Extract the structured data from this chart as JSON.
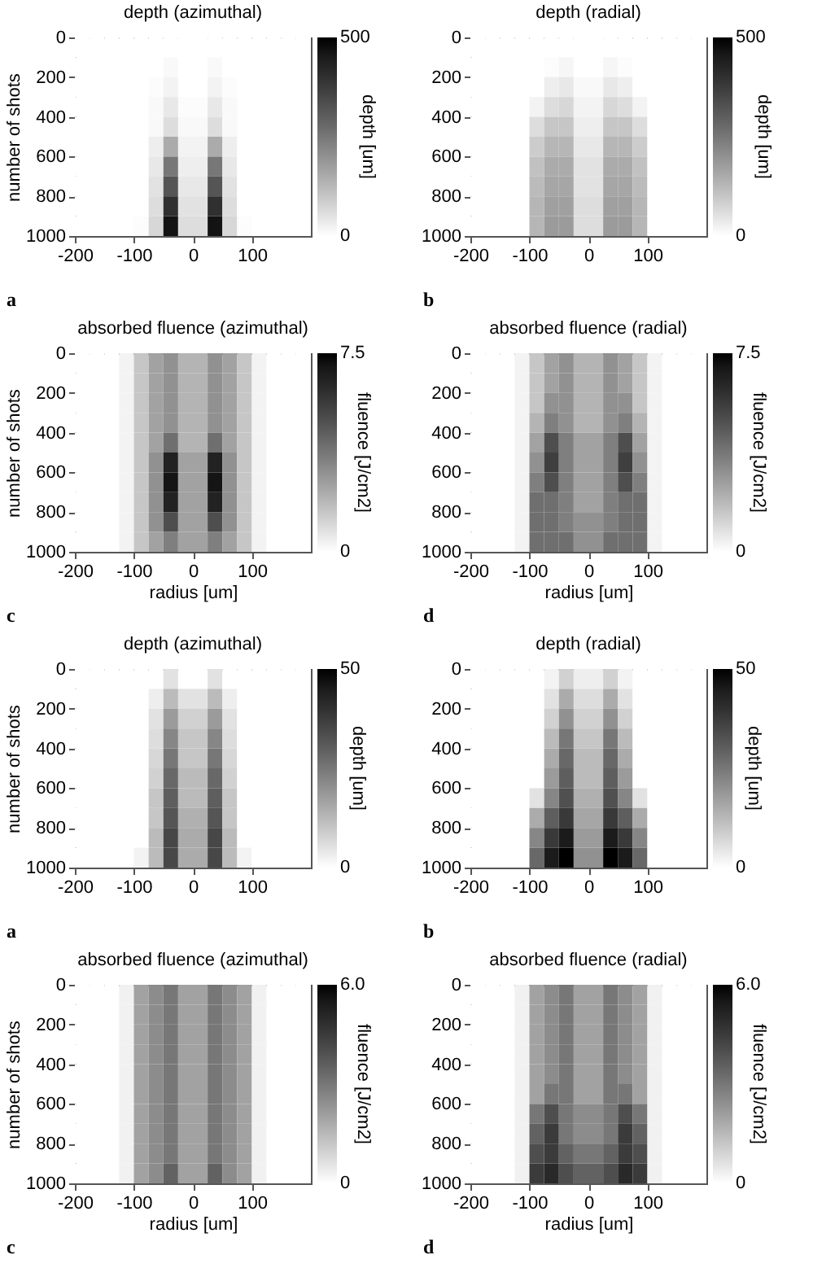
{
  "chart_data": [
    {
      "type": "heatmap",
      "title": "depth (azimuthal)",
      "ylabel": "number of shots",
      "clabel": "depth [um]",
      "annotations": [
        "a"
      ],
      "xlim": [
        -200,
        200
      ],
      "xticks": [
        -200,
        -100,
        0,
        100
      ],
      "ylim": [
        1000,
        0
      ],
      "yticks": [
        0,
        200,
        400,
        600,
        800,
        1000
      ],
      "clim": [
        0,
        500
      ],
      "cticks": [
        0,
        500
      ],
      "cells": [
        [
          0,
          0,
          0,
          0,
          0,
          0,
          0,
          0,
          0,
          0,
          0,
          0,
          0,
          0,
          0,
          0
        ],
        [
          0,
          0,
          0,
          0,
          0,
          0,
          10,
          0,
          0,
          10,
          0,
          0,
          0,
          0,
          0,
          0
        ],
        [
          0,
          0,
          0,
          0,
          0,
          5,
          20,
          0,
          0,
          20,
          5,
          0,
          0,
          0,
          0,
          0
        ],
        [
          0,
          0,
          0,
          0,
          0,
          10,
          40,
          5,
          5,
          40,
          10,
          0,
          0,
          0,
          0,
          0
        ],
        [
          0,
          0,
          0,
          0,
          0,
          10,
          60,
          10,
          10,
          60,
          10,
          0,
          0,
          0,
          0,
          0
        ],
        [
          0,
          0,
          0,
          0,
          0,
          30,
          150,
          20,
          20,
          150,
          30,
          0,
          0,
          0,
          0,
          0
        ],
        [
          0,
          0,
          0,
          0,
          0,
          40,
          250,
          30,
          30,
          250,
          40,
          0,
          0,
          0,
          0,
          0
        ],
        [
          0,
          0,
          0,
          0,
          0,
          50,
          320,
          40,
          40,
          320,
          50,
          0,
          0,
          0,
          0,
          0
        ],
        [
          0,
          0,
          0,
          0,
          0,
          60,
          400,
          50,
          50,
          400,
          60,
          0,
          0,
          0,
          0,
          0
        ],
        [
          0,
          0,
          0,
          0,
          5,
          70,
          470,
          60,
          60,
          470,
          70,
          5,
          0,
          0,
          0,
          0
        ]
      ]
    },
    {
      "type": "heatmap",
      "title": "depth (radial)",
      "clabel": "depth [um]",
      "annotations": [
        "b"
      ],
      "xlim": [
        -200,
        200
      ],
      "xticks": [
        -200,
        -100,
        0,
        100
      ],
      "ylim": [
        1000,
        0
      ],
      "yticks": [
        0,
        200,
        400,
        600,
        800,
        1000
      ],
      "clim": [
        0,
        500
      ],
      "cticks": [
        0,
        500
      ],
      "cells": [
        [
          0,
          0,
          0,
          0,
          0,
          0,
          0,
          0,
          0,
          0,
          0,
          0,
          0,
          0,
          0,
          0
        ],
        [
          0,
          0,
          0,
          0,
          0,
          5,
          15,
          0,
          0,
          15,
          5,
          0,
          0,
          0,
          0,
          0
        ],
        [
          0,
          0,
          0,
          0,
          0,
          30,
          40,
          10,
          10,
          40,
          30,
          0,
          0,
          0,
          0,
          0
        ],
        [
          0,
          0,
          0,
          0,
          20,
          60,
          70,
          20,
          20,
          70,
          60,
          20,
          0,
          0,
          0,
          0
        ],
        [
          0,
          0,
          0,
          0,
          60,
          100,
          100,
          30,
          30,
          100,
          100,
          60,
          0,
          0,
          0,
          0
        ],
        [
          0,
          0,
          0,
          0,
          90,
          130,
          130,
          40,
          40,
          130,
          130,
          90,
          0,
          0,
          0,
          0
        ],
        [
          0,
          0,
          0,
          0,
          110,
          150,
          150,
          50,
          50,
          150,
          150,
          110,
          0,
          0,
          0,
          0
        ],
        [
          0,
          0,
          0,
          0,
          120,
          160,
          160,
          50,
          50,
          160,
          160,
          120,
          0,
          0,
          0,
          0
        ],
        [
          0,
          0,
          0,
          0,
          130,
          170,
          170,
          60,
          60,
          170,
          170,
          130,
          0,
          0,
          0,
          0
        ],
        [
          0,
          0,
          0,
          0,
          130,
          180,
          180,
          60,
          60,
          180,
          180,
          130,
          0,
          0,
          0,
          0
        ]
      ]
    },
    {
      "type": "heatmap",
      "title": "absorbed fluence (azimuthal)",
      "xlabel": "radius [um]",
      "ylabel": "number of shots",
      "clabel": "fluence [J/cm2]",
      "annotations": [
        "c"
      ],
      "xlim": [
        -200,
        200
      ],
      "xticks": [
        -200,
        -100,
        0,
        100
      ],
      "ylim": [
        1000,
        0
      ],
      "yticks": [
        0,
        200,
        400,
        600,
        800,
        1000
      ],
      "clim": [
        0,
        7.5
      ],
      "cticks": [
        0,
        7.5
      ],
      "cells": [
        [
          0,
          0,
          0,
          0.3,
          1.5,
          2.5,
          3,
          2,
          2,
          3,
          2.5,
          1.5,
          0.3,
          0,
          0,
          0
        ],
        [
          0,
          0,
          0,
          0.3,
          1.5,
          2.5,
          3,
          2,
          2,
          3,
          2.5,
          1.5,
          0.3,
          0,
          0,
          0
        ],
        [
          0,
          0,
          0,
          0.3,
          1.5,
          2.5,
          3,
          2,
          2,
          3,
          2.5,
          1.5,
          0.3,
          0,
          0,
          0
        ],
        [
          0,
          0,
          0,
          0.3,
          1.5,
          2.5,
          3,
          2,
          2,
          3,
          2.5,
          1.5,
          0.3,
          0,
          0,
          0
        ],
        [
          0,
          0,
          0,
          0.3,
          1.5,
          2.5,
          4,
          2,
          2,
          4,
          2.5,
          1.5,
          0.3,
          0,
          0,
          0
        ],
        [
          0,
          0,
          0,
          0.3,
          1.5,
          3,
          6.5,
          2.5,
          2.5,
          6.5,
          3,
          1.5,
          0.3,
          0,
          0,
          0
        ],
        [
          0,
          0,
          0,
          0.3,
          1.5,
          3,
          7,
          2.5,
          2.5,
          7,
          3,
          1.5,
          0.3,
          0,
          0,
          0
        ],
        [
          0,
          0,
          0,
          0.3,
          1.5,
          3,
          6.5,
          2.5,
          2.5,
          6.5,
          3,
          1.5,
          0.3,
          0,
          0,
          0
        ],
        [
          0,
          0,
          0,
          0.3,
          1.5,
          3,
          5,
          2.5,
          2.5,
          5,
          3,
          1.5,
          0.3,
          0,
          0,
          0
        ],
        [
          0,
          0,
          0,
          0.3,
          1.5,
          2.5,
          3.5,
          2.5,
          2.5,
          3.5,
          2.5,
          1.5,
          0.3,
          0,
          0,
          0
        ]
      ]
    },
    {
      "type": "heatmap",
      "title": "absorbed fluence (radial)",
      "xlabel": "radius [um]",
      "clabel": "fluence [J/cm2]",
      "annotations": [
        "d"
      ],
      "xlim": [
        -200,
        200
      ],
      "xticks": [
        -200,
        -100,
        0,
        100
      ],
      "ylim": [
        1000,
        0
      ],
      "yticks": [
        0,
        200,
        400,
        600,
        800,
        1000
      ],
      "clim": [
        0,
        7.5
      ],
      "cticks": [
        0,
        7.5
      ],
      "cells": [
        [
          0,
          0,
          0,
          0.3,
          1.5,
          2.5,
          3,
          2,
          2,
          3,
          2.5,
          1.5,
          0.3,
          0,
          0,
          0
        ],
        [
          0,
          0,
          0,
          0.3,
          1.5,
          2.5,
          3,
          2,
          2,
          3,
          2.5,
          1.5,
          0.3,
          0,
          0,
          0
        ],
        [
          0,
          0,
          0,
          0.3,
          1.5,
          3,
          3,
          2,
          2,
          3,
          3,
          1.5,
          0.3,
          0,
          0,
          0
        ],
        [
          0,
          0,
          0,
          0.3,
          2,
          3.5,
          3,
          2,
          2,
          3,
          3.5,
          2,
          0.3,
          0,
          0,
          0
        ],
        [
          0,
          0,
          0,
          0.3,
          2.5,
          5,
          3.5,
          2.5,
          2.5,
          3.5,
          5,
          2.5,
          0.3,
          0,
          0,
          0
        ],
        [
          0,
          0,
          0,
          0.3,
          3,
          5.5,
          3.5,
          2.5,
          2.5,
          3.5,
          5.5,
          3,
          0.3,
          0,
          0,
          0
        ],
        [
          0,
          0,
          0,
          0.3,
          3.5,
          5,
          3.5,
          2.5,
          2.5,
          3.5,
          5,
          3.5,
          0.3,
          0,
          0,
          0
        ],
        [
          0,
          0,
          0,
          0.3,
          4,
          4,
          3.5,
          2.5,
          2.5,
          3.5,
          4,
          4,
          0.3,
          0,
          0,
          0
        ],
        [
          0,
          0,
          0,
          0.3,
          4,
          4,
          3.5,
          3,
          3,
          3.5,
          4,
          4,
          0.3,
          0,
          0,
          0
        ],
        [
          0,
          0,
          0,
          0.3,
          4,
          4,
          4,
          3,
          3,
          4,
          4,
          4,
          0.3,
          0,
          0,
          0
        ]
      ]
    },
    {
      "type": "heatmap",
      "title": "depth (azimuthal)",
      "ylabel": "number of shots",
      "clabel": "depth [um]",
      "annotations": [
        "a"
      ],
      "xlim": [
        -200,
        200
      ],
      "xticks": [
        -200,
        -100,
        0,
        100
      ],
      "ylim": [
        1000,
        0
      ],
      "yticks": [
        0,
        200,
        400,
        600,
        800,
        1000
      ],
      "clim": [
        0,
        50
      ],
      "cticks": [
        0,
        50
      ],
      "cells": [
        [
          0,
          0,
          0,
          0,
          0,
          0,
          5,
          0,
          0,
          5,
          0,
          0,
          0,
          0,
          0,
          0
        ],
        [
          0,
          0,
          0,
          0,
          0,
          3,
          12,
          5,
          5,
          12,
          3,
          0,
          0,
          0,
          0,
          0
        ],
        [
          0,
          0,
          0,
          0,
          0,
          5,
          18,
          8,
          8,
          18,
          5,
          0,
          0,
          0,
          0,
          0
        ],
        [
          0,
          0,
          0,
          0,
          0,
          6,
          22,
          10,
          10,
          22,
          6,
          0,
          0,
          0,
          0,
          0
        ],
        [
          0,
          0,
          0,
          0,
          0,
          7,
          25,
          10,
          10,
          25,
          7,
          0,
          0,
          0,
          0,
          0
        ],
        [
          0,
          0,
          0,
          0,
          0,
          8,
          28,
          12,
          12,
          28,
          8,
          0,
          0,
          0,
          0,
          0
        ],
        [
          0,
          0,
          0,
          0,
          0,
          10,
          30,
          12,
          12,
          30,
          10,
          0,
          0,
          0,
          0,
          0
        ],
        [
          0,
          0,
          0,
          0,
          0,
          10,
          32,
          14,
          14,
          32,
          10,
          0,
          0,
          0,
          0,
          0
        ],
        [
          0,
          0,
          0,
          0,
          0,
          12,
          35,
          15,
          15,
          35,
          12,
          0,
          0,
          0,
          0,
          0
        ],
        [
          0,
          0,
          0,
          0,
          2,
          12,
          35,
          15,
          15,
          35,
          12,
          2,
          0,
          0,
          0,
          0
        ]
      ]
    },
    {
      "type": "heatmap",
      "title": "depth (radial)",
      "clabel": "depth [um]",
      "annotations": [
        "b"
      ],
      "xlim": [
        -200,
        200
      ],
      "xticks": [
        -200,
        -100,
        0,
        100
      ],
      "ylim": [
        1000,
        0
      ],
      "yticks": [
        0,
        200,
        400,
        600,
        800,
        1000
      ],
      "clim": [
        0,
        50
      ],
      "cticks": [
        0,
        50
      ],
      "cells": [
        [
          0,
          0,
          0,
          0,
          0,
          2,
          8,
          3,
          3,
          8,
          2,
          0,
          0,
          0,
          0,
          0
        ],
        [
          0,
          0,
          0,
          0,
          0,
          5,
          15,
          6,
          6,
          15,
          5,
          0,
          0,
          0,
          0,
          0
        ],
        [
          0,
          0,
          0,
          0,
          0,
          8,
          20,
          8,
          8,
          20,
          8,
          0,
          0,
          0,
          0,
          0
        ],
        [
          0,
          0,
          0,
          0,
          0,
          12,
          25,
          10,
          10,
          25,
          12,
          0,
          0,
          0,
          0,
          0
        ],
        [
          0,
          0,
          0,
          0,
          0,
          15,
          28,
          12,
          12,
          28,
          15,
          0,
          0,
          0,
          0,
          0
        ],
        [
          0,
          0,
          0,
          0,
          0,
          18,
          30,
          12,
          12,
          30,
          18,
          0,
          0,
          0,
          0,
          0
        ],
        [
          0,
          0,
          0,
          0,
          5,
          22,
          33,
          14,
          14,
          33,
          22,
          5,
          0,
          0,
          0,
          0
        ],
        [
          0,
          0,
          0,
          0,
          15,
          30,
          38,
          16,
          16,
          38,
          30,
          15,
          0,
          0,
          0,
          0
        ],
        [
          0,
          0,
          0,
          0,
          22,
          38,
          45,
          18,
          18,
          45,
          38,
          22,
          0,
          0,
          0,
          0
        ],
        [
          0,
          0,
          0,
          0,
          28,
          45,
          50,
          20,
          20,
          50,
          45,
          28,
          0,
          0,
          0,
          0
        ]
      ]
    },
    {
      "type": "heatmap",
      "title": "absorbed fluence (azimuthal)",
      "xlabel": "radius [um]",
      "ylabel": "number of shots",
      "clabel": "fluence [J/cm2]",
      "annotations": [
        "c"
      ],
      "xlim": [
        -200,
        200
      ],
      "xticks": [
        -200,
        -100,
        0,
        100
      ],
      "ylim": [
        1000,
        0
      ],
      "yticks": [
        0,
        200,
        400,
        600,
        800,
        1000
      ],
      "clim": [
        0,
        6
      ],
      "cticks": [
        0,
        {
          "value": 6,
          "label": "6.0"
        }
      ],
      "cells": [
        [
          0,
          0,
          0,
          0.3,
          2,
          2.5,
          3,
          2,
          2,
          3,
          2.5,
          2,
          0.3,
          0,
          0,
          0
        ],
        [
          0,
          0,
          0,
          0.3,
          2,
          2.5,
          3,
          2,
          2,
          3,
          2.5,
          2,
          0.3,
          0,
          0,
          0
        ],
        [
          0,
          0,
          0,
          0.3,
          2,
          2.5,
          3,
          2,
          2,
          3,
          2.5,
          2,
          0.3,
          0,
          0,
          0
        ],
        [
          0,
          0,
          0,
          0.3,
          2,
          2.5,
          3,
          2,
          2,
          3,
          2.5,
          2,
          0.3,
          0,
          0,
          0
        ],
        [
          0,
          0,
          0,
          0.3,
          2,
          2.5,
          3,
          2,
          2,
          3,
          2.5,
          2,
          0.3,
          0,
          0,
          0
        ],
        [
          0,
          0,
          0,
          0.3,
          2,
          2.5,
          3,
          2,
          2,
          3,
          2.5,
          2,
          0.3,
          0,
          0,
          0
        ],
        [
          0,
          0,
          0,
          0.3,
          2,
          2.5,
          3,
          2,
          2,
          3,
          2.5,
          2,
          0.3,
          0,
          0,
          0
        ],
        [
          0,
          0,
          0,
          0.3,
          2,
          2.5,
          3,
          2,
          2,
          3,
          2.5,
          2,
          0.3,
          0,
          0,
          0
        ],
        [
          0,
          0,
          0,
          0.3,
          2,
          2.5,
          3,
          2,
          2,
          3,
          2.5,
          2,
          0.3,
          0,
          0,
          0
        ],
        [
          0,
          0,
          0,
          0.3,
          2,
          2.5,
          3.5,
          2,
          2,
          3.5,
          2.5,
          2,
          0.3,
          0,
          0,
          0
        ]
      ]
    },
    {
      "type": "heatmap",
      "title": "absorbed fluence (radial)",
      "xlabel": "radius [um]",
      "clabel": "fluence [J/cm2]",
      "annotations": [
        "d"
      ],
      "xlim": [
        -200,
        200
      ],
      "xticks": [
        -200,
        -100,
        0,
        100
      ],
      "ylim": [
        1000,
        0
      ],
      "yticks": [
        0,
        200,
        400,
        600,
        800,
        1000
      ],
      "clim": [
        0,
        6
      ],
      "cticks": [
        0,
        {
          "value": 6,
          "label": "6.0"
        }
      ],
      "cells": [
        [
          0,
          0,
          0,
          0.3,
          2,
          2.5,
          3,
          2,
          2,
          3,
          2.5,
          2,
          0.3,
          0,
          0,
          0
        ],
        [
          0,
          0,
          0,
          0.3,
          2,
          2.5,
          3,
          2,
          2,
          3,
          2.5,
          2,
          0.3,
          0,
          0,
          0
        ],
        [
          0,
          0,
          0,
          0.3,
          2,
          2.5,
          3,
          2,
          2,
          3,
          2.5,
          2,
          0.3,
          0,
          0,
          0
        ],
        [
          0,
          0,
          0,
          0.3,
          2,
          2.5,
          3,
          2,
          2,
          3,
          2.5,
          2,
          0.3,
          0,
          0,
          0
        ],
        [
          0,
          0,
          0,
          0.3,
          2,
          2.5,
          3,
          2,
          2,
          3,
          2.5,
          2,
          0.3,
          0,
          0,
          0
        ],
        [
          0,
          0,
          0,
          0.3,
          2,
          3,
          3,
          2,
          2,
          3,
          3,
          2,
          0.3,
          0,
          0,
          0
        ],
        [
          0,
          0,
          0,
          0.3,
          3,
          4,
          3,
          2.5,
          2.5,
          3,
          4,
          3,
          0.3,
          0,
          0,
          0
        ],
        [
          0,
          0,
          0,
          0.3,
          3.5,
          4.5,
          3,
          2.5,
          2.5,
          3,
          4.5,
          3.5,
          0.3,
          0,
          0,
          0
        ],
        [
          0,
          0,
          0,
          0.3,
          4,
          4.5,
          3.5,
          3,
          3,
          3.5,
          4.5,
          4,
          0.3,
          0,
          0,
          0
        ],
        [
          0,
          0,
          0,
          0.3,
          4.5,
          5,
          4,
          3.5,
          3.5,
          4,
          5,
          4.5,
          0.3,
          0,
          0,
          0
        ]
      ]
    }
  ]
}
